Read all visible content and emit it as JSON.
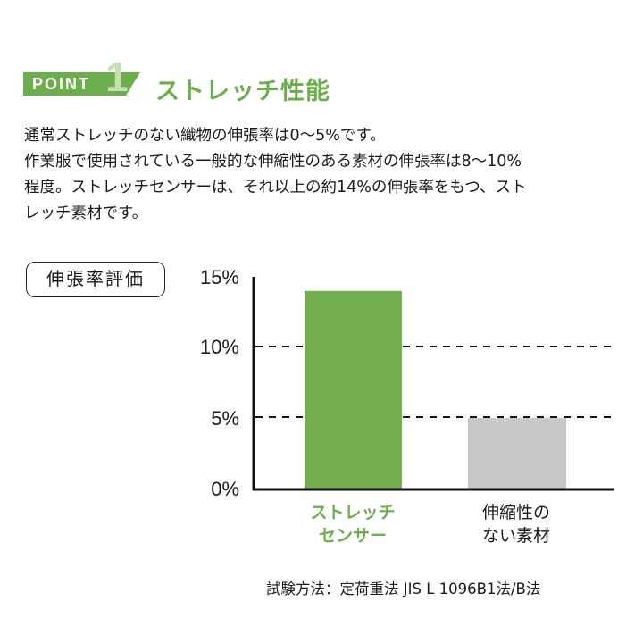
{
  "header": {
    "badge_label": "POINT",
    "badge_number": "1",
    "title": "ストレッチ性能"
  },
  "description": {
    "lines": [
      "通常ストレッチのない織物の伸張率は0〜5%です。",
      "作業服で使用されている一般的な伸縮性のある素材の伸張率は8〜10%",
      "程度。ストレッチセンサーは、それ以上の約14%の伸張率をもつ、スト",
      "レッチ素材です。"
    ]
  },
  "chart_section_label": "伸張率評価",
  "colors": {
    "accent_green": "#6cad4c",
    "badge_number": "#c6e0b0",
    "bar_gray": "#c8c8c8"
  },
  "chart_data": {
    "type": "bar",
    "title": "伸張率評価",
    "categories": [
      "ストレッチセンサー",
      "伸縮性のない素材"
    ],
    "category_lines": [
      [
        "ストレッチ",
        "センサー"
      ],
      [
        "伸縮性の",
        "ない素材"
      ]
    ],
    "values": [
      14,
      5
    ],
    "bar_colors": [
      "#72ad4e",
      "#c8c8c8"
    ],
    "unit": "%",
    "ylim": [
      0,
      15
    ],
    "yticks": [
      0,
      5,
      10,
      15
    ],
    "ytick_labels": [
      "0%",
      "5%",
      "10%",
      "15%"
    ],
    "grid": "dashed at 5% and 10%",
    "xlabel": "",
    "ylabel": ""
  },
  "footnote": "試験方法：定荷重法 JIS L 1096B1法/B法"
}
